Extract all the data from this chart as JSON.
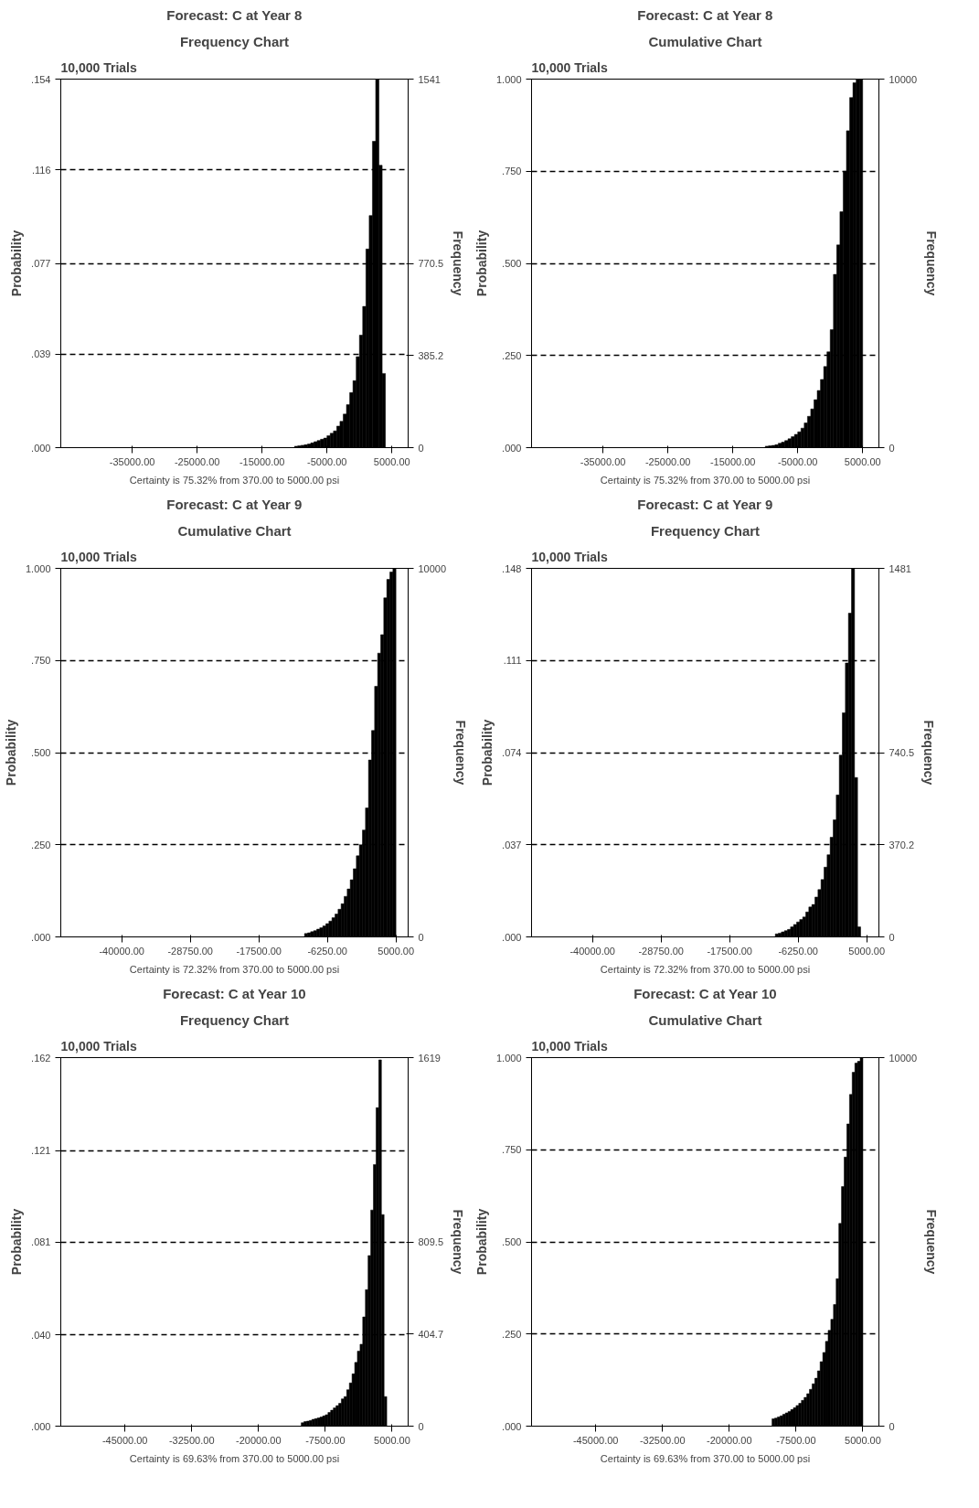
{
  "chart_data": [
    {
      "type": "histogram",
      "title": "Forecast: C at Year 8",
      "subtitle": "Frequency Chart",
      "ylabel": "Probability",
      "y2label": "Frequency",
      "annotations": [
        "10,000 Trials",
        "Certainty is 75.32% from 370.00 to 5000.00 psi"
      ],
      "color": "#000000",
      "grid": "y",
      "bins": [
        -10000,
        -9500,
        -9000,
        -8500,
        -8000,
        -7500,
        -7000,
        -6500,
        -6000,
        -5500,
        -5000,
        -4500,
        -4000,
        -3500,
        -3000,
        -2500,
        -2000,
        -1500,
        -1000,
        -500,
        0,
        500,
        1000,
        1500,
        2000,
        2500,
        3000,
        3500,
        4000
      ],
      "values": [
        0.0006,
        0.0008,
        0.001,
        0.0012,
        0.0015,
        0.002,
        0.0025,
        0.003,
        0.0035,
        0.004,
        0.005,
        0.006,
        0.007,
        0.009,
        0.011,
        0.014,
        0.018,
        0.023,
        0.028,
        0.038,
        0.047,
        0.059,
        0.083,
        0.097,
        0.128,
        0.154,
        0.118,
        0.031
      ],
      "xlim": [
        -46000,
        7500
      ],
      "xticks": [
        {
          "value": -35000,
          "label": "-35000.00"
        },
        {
          "value": -25000,
          "label": "-25000.00"
        },
        {
          "value": -15000,
          "label": "-15000.00"
        },
        {
          "value": -5000,
          "label": "-5000.00"
        },
        {
          "value": 5000,
          "label": "5000.00"
        }
      ],
      "ylim": [
        0,
        0.154
      ],
      "yticks": [
        {
          "value": 0,
          "label": ".000"
        },
        {
          "value": 0.039,
          "label": ".039"
        },
        {
          "value": 0.077,
          "label": ".077"
        },
        {
          "value": 0.116,
          "label": ".116"
        },
        {
          "value": 0.154,
          "label": ".154"
        }
      ],
      "y2lim": [
        0,
        1541
      ],
      "y2ticks": [
        0,
        385.2,
        770.5,
        1541
      ]
    },
    {
      "type": "histogram",
      "title": "Forecast: C at Year 8",
      "subtitle": "Cumulative Chart",
      "ylabel": "Probability",
      "y2label": "Frequency",
      "annotations": [
        "10,000 Trials",
        "Certainty is 75.32% from 370.00 to 5000.00 psi"
      ],
      "color": "#000000",
      "grid": "y",
      "bins": [
        -10000,
        -9500,
        -9000,
        -8500,
        -8000,
        -7500,
        -7000,
        -6500,
        -6000,
        -5500,
        -5000,
        -4500,
        -4000,
        -3500,
        -3000,
        -2500,
        -2000,
        -1500,
        -1000,
        -500,
        0,
        500,
        1000,
        1500,
        2000,
        2500,
        3000,
        3500,
        4000,
        4500,
        5000
      ],
      "values": [
        0.004,
        0.005,
        0.006,
        0.008,
        0.012,
        0.015,
        0.019,
        0.024,
        0.03,
        0.036,
        0.043,
        0.053,
        0.067,
        0.085,
        0.105,
        0.13,
        0.155,
        0.185,
        0.22,
        0.26,
        0.32,
        0.47,
        0.55,
        0.64,
        0.75,
        0.86,
        0.95,
        0.99,
        1.0,
        1.0
      ],
      "xlim": [
        -46000,
        7500
      ],
      "xticks": [
        {
          "value": -35000,
          "label": "-35000.00"
        },
        {
          "value": -25000,
          "label": "-25000.00"
        },
        {
          "value": -15000,
          "label": "-15000.00"
        },
        {
          "value": -5000,
          "label": "-5000.00"
        },
        {
          "value": 5000,
          "label": "5000.00"
        }
      ],
      "ylim": [
        0,
        1
      ],
      "yticks": [
        {
          "value": 0,
          "label": ".000"
        },
        {
          "value": 0.25,
          "label": ".250"
        },
        {
          "value": 0.5,
          "label": ".500"
        },
        {
          "value": 0.75,
          "label": ".750"
        },
        {
          "value": 1,
          "label": "1.000"
        }
      ],
      "y2lim": [
        0,
        10000
      ],
      "y2ticks": [
        0,
        10000
      ]
    },
    {
      "type": "histogram",
      "title": "Forecast: C at Year 9",
      "subtitle": "Cumulative Chart",
      "ylabel": "Probability",
      "y2label": "Frequency",
      "annotations": [
        "10,000 Trials",
        "Certainty is 72.32% from 370.00 to 5000.00 psi"
      ],
      "color": "#000000",
      "grid": "y",
      "bins": [
        -10000,
        -9500,
        -9000,
        -8500,
        -8000,
        -7500,
        -7000,
        -6500,
        -6000,
        -5500,
        -5000,
        -4500,
        -4000,
        -3500,
        -3000,
        -2500,
        -2000,
        -1500,
        -1000,
        -500,
        0,
        500,
        1000,
        1500,
        2000,
        2500,
        3000,
        3500,
        4000,
        4500,
        5000
      ],
      "values": [
        0.009,
        0.011,
        0.014,
        0.017,
        0.021,
        0.025,
        0.03,
        0.036,
        0.043,
        0.052,
        0.062,
        0.075,
        0.09,
        0.11,
        0.13,
        0.155,
        0.185,
        0.22,
        0.25,
        0.29,
        0.35,
        0.48,
        0.56,
        0.68,
        0.77,
        0.82,
        0.92,
        0.97,
        0.99,
        1.0
      ],
      "xlim": [
        -50000,
        7000
      ],
      "xticks": [
        {
          "value": -40000,
          "label": "-40000.00"
        },
        {
          "value": -28750,
          "label": "-28750.00"
        },
        {
          "value": -17500,
          "label": "-17500.00"
        },
        {
          "value": -6250,
          "label": "-6250.00"
        },
        {
          "value": 5000,
          "label": "5000.00"
        }
      ],
      "ylim": [
        0,
        1
      ],
      "yticks": [
        {
          "value": 0,
          "label": ".000"
        },
        {
          "value": 0.25,
          "label": ".250"
        },
        {
          "value": 0.5,
          "label": ".500"
        },
        {
          "value": 0.75,
          "label": ".750"
        },
        {
          "value": 1,
          "label": "1.000"
        }
      ],
      "y2lim": [
        0,
        10000
      ],
      "y2ticks": [
        0,
        10000
      ]
    },
    {
      "type": "histogram",
      "title": "Forecast: C at Year 9",
      "subtitle": "Frequency Chart",
      "ylabel": "Probability",
      "y2label": "Frequency",
      "annotations": [
        "10,000 Trials",
        "Certainty is 72.32% from 370.00 to 5000.00 psi"
      ],
      "color": "#000000",
      "grid": "y",
      "bins": [
        -10000,
        -9500,
        -9000,
        -8500,
        -8000,
        -7500,
        -7000,
        -6500,
        -6000,
        -5500,
        -5000,
        -4500,
        -4000,
        -3500,
        -3000,
        -2500,
        -2000,
        -1500,
        -1000,
        -500,
        0,
        500,
        1000,
        1500,
        2000,
        2500,
        3000,
        3500,
        4000
      ],
      "values": [
        0.0012,
        0.0015,
        0.002,
        0.0025,
        0.003,
        0.004,
        0.005,
        0.006,
        0.007,
        0.008,
        0.01,
        0.012,
        0.013,
        0.016,
        0.019,
        0.023,
        0.028,
        0.033,
        0.04,
        0.047,
        0.057,
        0.073,
        0.09,
        0.11,
        0.13,
        0.148,
        0.064,
        0.004
      ],
      "xlim": [
        -50000,
        7000
      ],
      "xticks": [
        {
          "value": -40000,
          "label": "-40000.00"
        },
        {
          "value": -28750,
          "label": "-28750.00"
        },
        {
          "value": -17500,
          "label": "-17500.00"
        },
        {
          "value": -6250,
          "label": "-6250.00"
        },
        {
          "value": 5000,
          "label": "5000.00"
        }
      ],
      "ylim": [
        0,
        0.148
      ],
      "yticks": [
        {
          "value": 0,
          "label": ".000"
        },
        {
          "value": 0.037,
          "label": ".037"
        },
        {
          "value": 0.074,
          "label": ".074"
        },
        {
          "value": 0.111,
          "label": ".111"
        },
        {
          "value": 0.148,
          "label": ".148"
        }
      ],
      "y2lim": [
        0,
        1481
      ],
      "y2ticks": [
        0,
        370.2,
        740.5,
        1481
      ]
    },
    {
      "type": "histogram",
      "title": "Forecast: C at Year 10",
      "subtitle": "Frequency Chart",
      "ylabel": "Probability",
      "y2label": "Frequency",
      "annotations": [
        "10,000 Trials",
        "Certainty is 69.63% from 370.00 to 5000.00 psi"
      ],
      "color": "#000000",
      "grid": "y",
      "bins": [
        -12000,
        -11500,
        -11000,
        -10500,
        -10000,
        -9500,
        -9000,
        -8500,
        -8000,
        -7500,
        -7000,
        -6500,
        -6000,
        -5500,
        -5000,
        -4500,
        -4000,
        -3500,
        -3000,
        -2500,
        -2000,
        -1500,
        -1000,
        -500,
        0,
        500,
        1000,
        1500,
        2000,
        2500,
        3000,
        3500,
        4000
      ],
      "values": [
        0.0015,
        0.002,
        0.0022,
        0.0025,
        0.003,
        0.0033,
        0.0036,
        0.004,
        0.0045,
        0.005,
        0.006,
        0.007,
        0.008,
        0.009,
        0.01,
        0.012,
        0.013,
        0.016,
        0.019,
        0.023,
        0.028,
        0.033,
        0.036,
        0.048,
        0.06,
        0.075,
        0.095,
        0.115,
        0.14,
        0.161,
        0.093,
        0.013
      ],
      "xlim": [
        -57000,
        8000
      ],
      "xticks": [
        {
          "value": -45000,
          "label": "-45000.00"
        },
        {
          "value": -32500,
          "label": "-32500.00"
        },
        {
          "value": -20000,
          "label": "-20000.00"
        },
        {
          "value": -7500,
          "label": "-7500.00"
        },
        {
          "value": 5000,
          "label": "5000.00"
        }
      ],
      "ylim": [
        0,
        0.162
      ],
      "yticks": [
        {
          "value": 0,
          "label": ".000"
        },
        {
          "value": 0.04,
          "label": ".040"
        },
        {
          "value": 0.081,
          "label": ".081"
        },
        {
          "value": 0.121,
          "label": ".121"
        },
        {
          "value": 0.162,
          "label": ".162"
        }
      ],
      "y2lim": [
        0,
        1619
      ],
      "y2ticks": [
        0,
        404.7,
        809.5,
        1619
      ]
    },
    {
      "type": "histogram",
      "title": "Forecast: C at Year 10",
      "subtitle": "Cumulative Chart",
      "ylabel": "Probability",
      "y2label": "Frequency",
      "annotations": [
        "10,000 Trials",
        "Certainty is 69.63% from 370.00 to 5000.00 psi"
      ],
      "color": "#000000",
      "grid": "y",
      "bins": [
        -12000,
        -11500,
        -11000,
        -10500,
        -10000,
        -9500,
        -9000,
        -8500,
        -8000,
        -7500,
        -7000,
        -6500,
        -6000,
        -5500,
        -5000,
        -4500,
        -4000,
        -3500,
        -3000,
        -2500,
        -2000,
        -1500,
        -1000,
        -500,
        0,
        500,
        1000,
        1500,
        2000,
        2500,
        3000,
        3500,
        4000,
        4500,
        5000
      ],
      "values": [
        0.02,
        0.022,
        0.025,
        0.028,
        0.032,
        0.036,
        0.04,
        0.045,
        0.05,
        0.056,
        0.062,
        0.07,
        0.078,
        0.088,
        0.1,
        0.115,
        0.13,
        0.15,
        0.175,
        0.2,
        0.23,
        0.26,
        0.29,
        0.33,
        0.4,
        0.55,
        0.65,
        0.73,
        0.82,
        0.9,
        0.96,
        0.985,
        0.99,
        1.0
      ],
      "xlim": [
        -57000,
        8000
      ],
      "xticks": [
        {
          "value": -45000,
          "label": "-45000.00"
        },
        {
          "value": -32500,
          "label": "-32500.00"
        },
        {
          "value": -20000,
          "label": "-20000.00"
        },
        {
          "value": -7500,
          "label": "-7500.00"
        },
        {
          "value": 5000,
          "label": "5000.00"
        }
      ],
      "ylim": [
        0,
        1
      ],
      "yticks": [
        {
          "value": 0,
          "label": ".000"
        },
        {
          "value": 0.25,
          "label": ".250"
        },
        {
          "value": 0.5,
          "label": ".500"
        },
        {
          "value": 0.75,
          "label": ".750"
        },
        {
          "value": 1,
          "label": "1.000"
        }
      ],
      "y2lim": [
        0,
        10000
      ],
      "y2ticks": [
        0,
        10000
      ]
    }
  ]
}
